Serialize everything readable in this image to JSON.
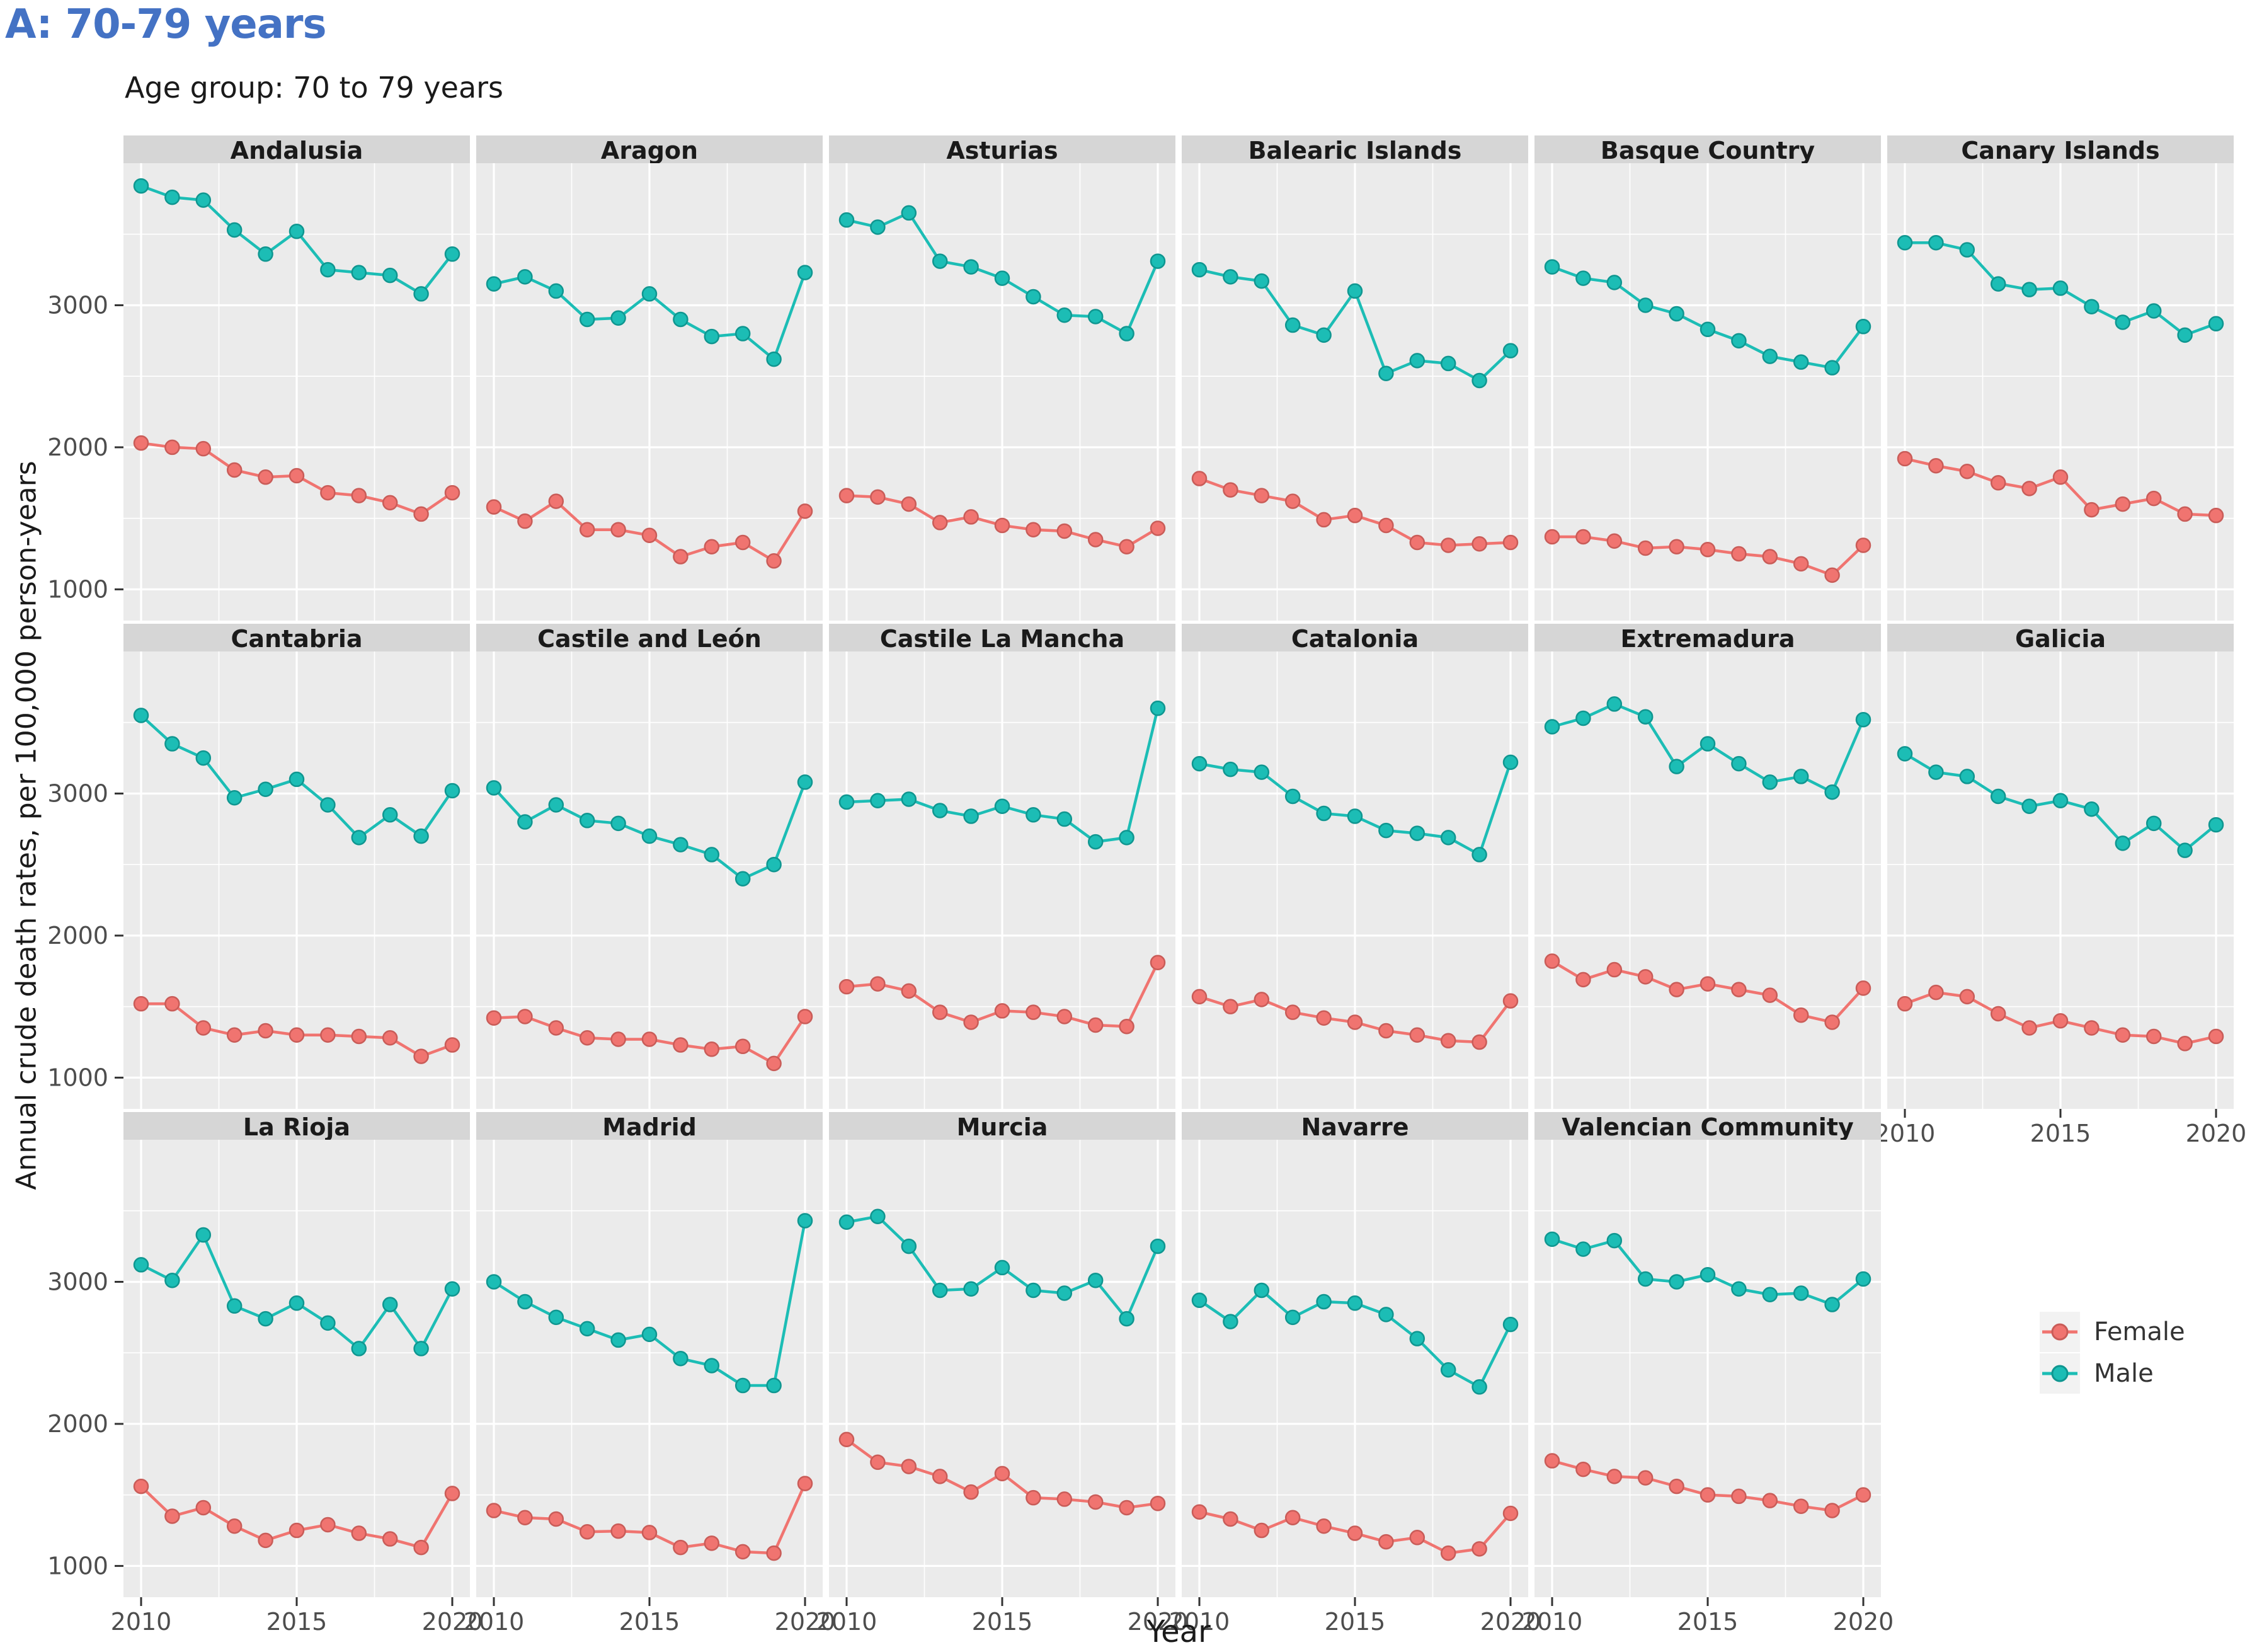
{
  "page_title": "A: 70-79 years",
  "subtitle": "Age group: 70 to 79 years",
  "axes": {
    "y_label": "Annual crude death rates, per 100,000 person-years",
    "x_label": "Year"
  },
  "legend": {
    "entries": [
      {
        "label": "Female",
        "color": "#F07470",
        "stroke": "#C95C58"
      },
      {
        "label": "Male",
        "color": "#1CBDB5",
        "stroke": "#0F9690"
      }
    ]
  },
  "colors": {
    "title_accent": "#4472C4",
    "panel_bg": "#EBEBEB",
    "strip_bg": "#D6D6D6",
    "grid": "#FFFFFF",
    "tick_text": "#4D4D4D",
    "strip_text": "#1a1a1a",
    "axis_tick": "#333333"
  },
  "chart_data": {
    "type": "line",
    "title": "Age group: 70 to 79 years",
    "xlabel": "Year",
    "ylabel": "Annual crude death rates, per 100,000 person-years",
    "x": [
      2010,
      2011,
      2012,
      2013,
      2014,
      2015,
      2016,
      2017,
      2018,
      2019,
      2020
    ],
    "x_ticks": [
      2010,
      2015,
      2020
    ],
    "x_minor": [
      2012.5,
      2017.5
    ],
    "y_ticks": [
      1000,
      2000,
      3000
    ],
    "y_minor": [
      1500,
      2500,
      3500
    ],
    "ylim": [
      780,
      4000
    ],
    "grid": true,
    "legend_position": "empty-facet-slot-bottom-right",
    "series_names": [
      "Female",
      "Male"
    ],
    "facets": [
      {
        "name": "Andalusia",
        "Female": [
          2030,
          2000,
          1990,
          1840,
          1790,
          1800,
          1680,
          1660,
          1610,
          1530,
          1680
        ],
        "Male": [
          3840,
          3760,
          3740,
          3530,
          3360,
          3520,
          3250,
          3230,
          3210,
          3080,
          3360
        ]
      },
      {
        "name": "Aragon",
        "Female": [
          1580,
          1480,
          1620,
          1420,
          1420,
          1380,
          1230,
          1300,
          1330,
          1200,
          1550
        ],
        "Male": [
          3150,
          3200,
          3100,
          2900,
          2910,
          3080,
          2900,
          2780,
          2800,
          2620,
          3230
        ]
      },
      {
        "name": "Asturias",
        "Female": [
          1660,
          1650,
          1600,
          1470,
          1510,
          1450,
          1420,
          1410,
          1350,
          1300,
          1430
        ],
        "Male": [
          3600,
          3550,
          3650,
          3310,
          3270,
          3190,
          3060,
          2930,
          2920,
          2800,
          3310
        ]
      },
      {
        "name": "Balearic Islands",
        "Female": [
          1780,
          1700,
          1660,
          1620,
          1490,
          1520,
          1450,
          1330,
          1310,
          1320,
          1330
        ],
        "Male": [
          3250,
          3200,
          3170,
          2860,
          2790,
          3100,
          2520,
          2610,
          2590,
          2470,
          2680
        ]
      },
      {
        "name": "Basque Country",
        "Female": [
          1370,
          1370,
          1340,
          1290,
          1300,
          1280,
          1250,
          1230,
          1180,
          1100,
          1310
        ],
        "Male": [
          3270,
          3190,
          3160,
          3000,
          2940,
          2830,
          2750,
          2640,
          2600,
          2560,
          2850
        ]
      },
      {
        "name": "Canary Islands",
        "Female": [
          1920,
          1870,
          1830,
          1750,
          1710,
          1790,
          1560,
          1600,
          1640,
          1530,
          1520
        ],
        "Male": [
          3440,
          3440,
          3390,
          3150,
          3110,
          3120,
          2990,
          2880,
          2960,
          2790,
          2870
        ]
      },
      {
        "name": "Cantabria",
        "Female": [
          1520,
          1520,
          1350,
          1300,
          1330,
          1300,
          1300,
          1290,
          1280,
          1150,
          1230
        ],
        "Male": [
          3550,
          3350,
          3250,
          2970,
          3030,
          3100,
          2920,
          2690,
          2850,
          2700,
          3020
        ]
      },
      {
        "name": "Castile and León",
        "Female": [
          1420,
          1430,
          1350,
          1280,
          1270,
          1270,
          1230,
          1200,
          1220,
          1100,
          1430
        ],
        "Male": [
          3040,
          2800,
          2920,
          2810,
          2790,
          2700,
          2640,
          2570,
          2400,
          2500,
          3080
        ]
      },
      {
        "name": "Castile La Mancha",
        "Female": [
          1640,
          1660,
          1610,
          1460,
          1390,
          1470,
          1460,
          1430,
          1370,
          1360,
          1810
        ],
        "Male": [
          2940,
          2950,
          2960,
          2880,
          2840,
          2910,
          2850,
          2820,
          2660,
          2690,
          3600
        ]
      },
      {
        "name": "Catalonia",
        "Female": [
          1570,
          1500,
          1550,
          1460,
          1420,
          1390,
          1330,
          1300,
          1260,
          1250,
          1540
        ],
        "Male": [
          3210,
          3170,
          3150,
          2980,
          2860,
          2840,
          2740,
          2720,
          2690,
          2570,
          3220
        ]
      },
      {
        "name": "Extremadura",
        "Female": [
          1820,
          1690,
          1760,
          1710,
          1620,
          1660,
          1620,
          1580,
          1440,
          1390,
          1630
        ],
        "Male": [
          3470,
          3530,
          3630,
          3540,
          3190,
          3350,
          3210,
          3080,
          3120,
          3010,
          3520
        ]
      },
      {
        "name": "Galicia",
        "Female": [
          1520,
          1600,
          1570,
          1450,
          1350,
          1400,
          1350,
          1300,
          1290,
          1240,
          1290
        ],
        "Male": [
          3280,
          3150,
          3120,
          2980,
          2910,
          2950,
          2890,
          2650,
          2790,
          2600,
          2780
        ]
      },
      {
        "name": "La Rioja",
        "Female": [
          1560,
          1350,
          1410,
          1280,
          1180,
          1250,
          1290,
          1230,
          1190,
          1130,
          1510
        ],
        "Male": [
          3120,
          3010,
          3330,
          2830,
          2740,
          2850,
          2710,
          2530,
          2840,
          2530,
          2950
        ]
      },
      {
        "name": "Madrid",
        "Female": [
          1390,
          1340,
          1330,
          1240,
          1245,
          1235,
          1130,
          1160,
          1100,
          1090,
          1580
        ],
        "Male": [
          3000,
          2860,
          2750,
          2670,
          2590,
          2630,
          2460,
          2410,
          2270,
          2270,
          3430
        ]
      },
      {
        "name": "Murcia",
        "Female": [
          1890,
          1730,
          1700,
          1630,
          1520,
          1650,
          1480,
          1470,
          1450,
          1410,
          1440
        ],
        "Male": [
          3420,
          3460,
          3250,
          2940,
          2950,
          3100,
          2940,
          2920,
          3010,
          2740,
          3250
        ]
      },
      {
        "name": "Navarre",
        "Female": [
          1380,
          1330,
          1250,
          1340,
          1280,
          1230,
          1170,
          1200,
          1090,
          1120,
          1370
        ],
        "Male": [
          2870,
          2720,
          2940,
          2750,
          2860,
          2850,
          2770,
          2600,
          2380,
          2260,
          2700
        ]
      },
      {
        "name": "Valencian Community",
        "Female": [
          1740,
          1680,
          1630,
          1620,
          1560,
          1500,
          1490,
          1460,
          1420,
          1390,
          1500
        ],
        "Male": [
          3300,
          3230,
          3290,
          3020,
          3000,
          3050,
          2950,
          2910,
          2920,
          2840,
          3020
        ]
      }
    ]
  }
}
